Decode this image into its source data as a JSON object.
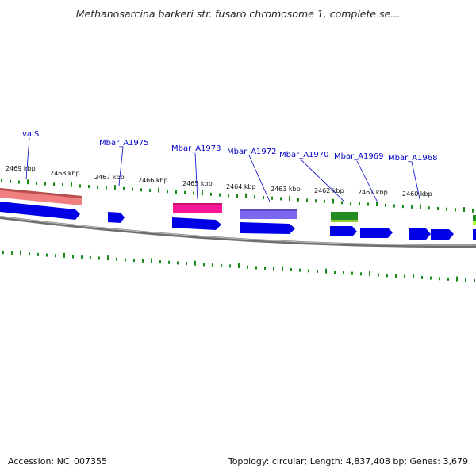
{
  "title": "Methanosarcina barkeri str. fusaro chromosome 1, complete se...",
  "footer": {
    "accession": "Accession: NC_007355",
    "summary": "Topology: circular; Length: 4,837,408 bp; Genes: 3,679"
  },
  "colors": {
    "gene_default": "#0000e6",
    "tick_green": "#1a8a1a",
    "label_blue": "#0000c8",
    "backbone": "#777777"
  },
  "scale_labels": [
    "2469 kbp",
    "2468 kbp",
    "2467 kbp",
    "2466 kbp",
    "2465 kbp",
    "2464 kbp",
    "2463 kbp",
    "2462 kbp",
    "2461 kbp",
    "2460 kbp"
  ],
  "gene_labels": [
    "valS",
    "Mbar_A1975",
    "Mbar_A1973",
    "Mbar_A1972",
    "Mbar_A1970",
    "Mbar_A1969",
    "Mbar_A1968"
  ],
  "features": [
    {
      "type": "CDS",
      "strand": "-",
      "color": "#0000e6"
    },
    {
      "type": "CDS",
      "strand": "-",
      "color": "#0000e6"
    },
    {
      "type": "CDS",
      "strand": "-",
      "color": "#0000e6"
    },
    {
      "type": "CDS",
      "strand": "-",
      "color": "#0000e6"
    },
    {
      "type": "CDS",
      "strand": "-",
      "color": "#0000e6"
    },
    {
      "type": "CDS",
      "strand": "-",
      "color": "#0000e6"
    },
    {
      "type": "CDS",
      "strand": "-",
      "color": "#0000e6"
    },
    {
      "type": "CDS",
      "strand": "-",
      "color": "#0000e6"
    },
    {
      "type": "CDS",
      "strand": "-",
      "color": "#0000e6"
    },
    {
      "type": "COG",
      "color": "#f08080"
    },
    {
      "type": "COG",
      "color": "#ff1493"
    },
    {
      "type": "COG",
      "color": "#7b68ee"
    },
    {
      "type": "COG",
      "color": "#228b22"
    },
    {
      "type": "COG",
      "color": "#adff2f"
    }
  ]
}
